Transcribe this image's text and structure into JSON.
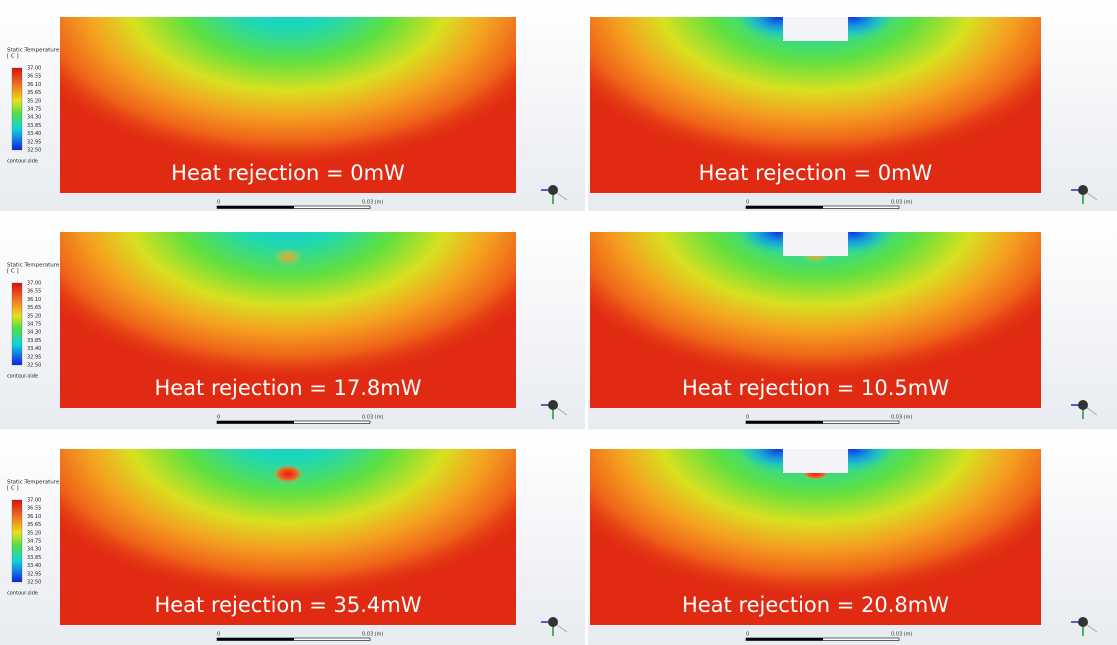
{
  "legend": {
    "title": "Static Temperature",
    "unit": "[ C ]",
    "ticks": [
      "37.00",
      "36.55",
      "36.10",
      "35.65",
      "35.20",
      "34.75",
      "34.30",
      "33.85",
      "33.40",
      "32.95",
      "32.50"
    ],
    "footer": "contour-side"
  },
  "scale_bar": {
    "start": "0",
    "end": "0.03 (m)"
  },
  "panels": [
    {
      "label": "Heat rejection = 0mW"
    },
    {
      "label": "Heat rejection = 0mW"
    },
    {
      "label": "Heat rejection = 17.8mW"
    },
    {
      "label": "Heat rejection = 10.5mW"
    },
    {
      "label": "Heat rejection = 35.4mW"
    },
    {
      "label": "Heat rejection = 20.8mW"
    }
  ]
}
